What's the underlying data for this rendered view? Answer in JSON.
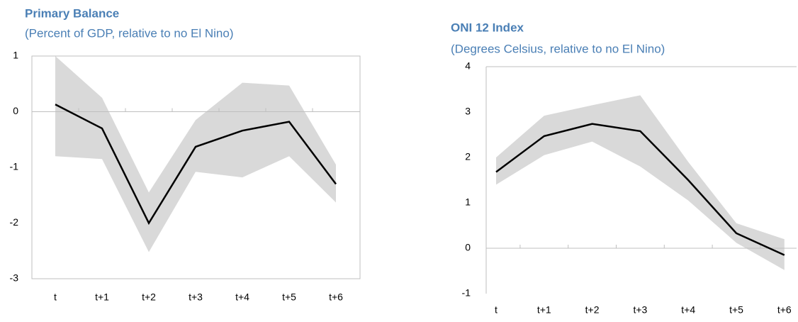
{
  "chart_data": [
    {
      "type": "line",
      "title": "Primary Balance",
      "subtitle": "(Percent of GDP, relative to no El Nino)",
      "categories": [
        "t",
        "t+1",
        "t+2",
        "t+3",
        "t+4",
        "t+5",
        "t+6"
      ],
      "values": [
        0.13,
        -0.3,
        -2.0,
        -0.63,
        -0.34,
        -0.18,
        -1.3
      ],
      "color": "#000000",
      "band_upper": [
        1.0,
        0.25,
        -1.45,
        -0.15,
        0.52,
        0.47,
        -0.95
      ],
      "band_lower": [
        -0.8,
        -0.85,
        -2.52,
        -1.08,
        -1.18,
        -0.8,
        -1.63
      ],
      "band_color": "#d9d9d9",
      "ylim": [
        -3,
        1
      ],
      "yticks": [
        -3,
        -2,
        -1,
        0,
        1
      ]
    },
    {
      "type": "line",
      "title": "ONI 12 Index",
      "subtitle": "(Degrees Celsius, relative to no El Nino)",
      "categories": [
        "t",
        "t+1",
        "t+2",
        "t+3",
        "t+4",
        "t+5",
        "t+6"
      ],
      "values": [
        1.68,
        2.47,
        2.74,
        2.58,
        1.5,
        0.33,
        -0.15
      ],
      "color": "#000000",
      "band_upper": [
        2.0,
        2.92,
        3.15,
        3.37,
        1.9,
        0.55,
        0.2
      ],
      "band_lower": [
        1.4,
        2.05,
        2.35,
        1.8,
        1.05,
        0.12,
        -0.48
      ],
      "band_color": "#d9d9d9",
      "ylim": [
        -1,
        4
      ],
      "yticks": [
        -1,
        0,
        1,
        2,
        3,
        4
      ]
    }
  ]
}
